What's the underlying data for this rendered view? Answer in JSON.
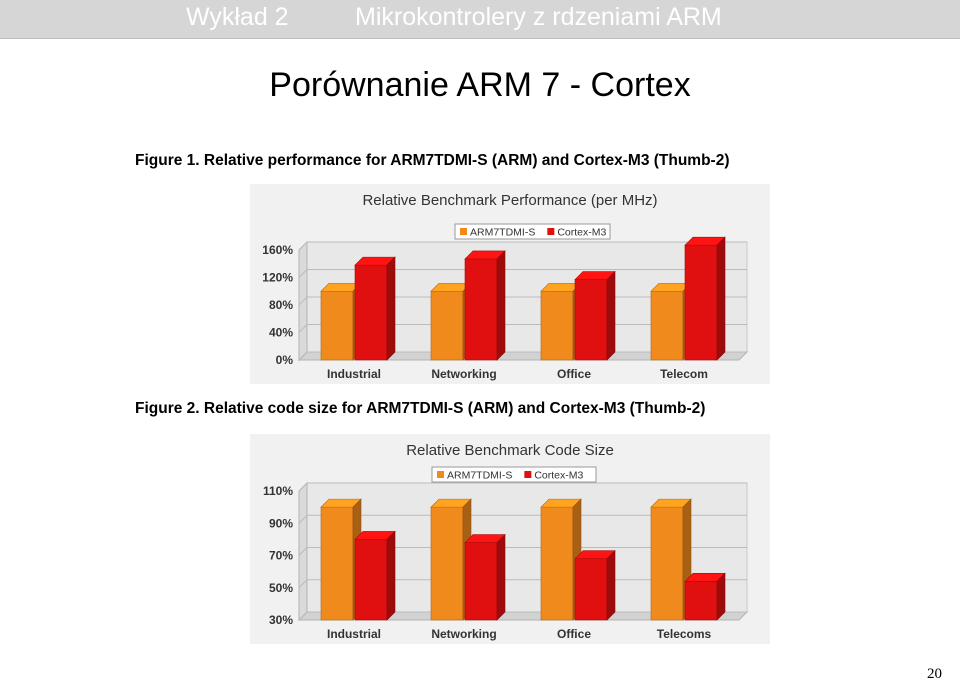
{
  "header": {
    "lecture": "Wykład 2",
    "course": "Mikrokontrolery z rdzeniami ARM"
  },
  "slide_title": "Porównanie ARM 7 - Cortex",
  "figures": [
    {
      "caption": "Figure 1. Relative performance for ARM7TDMI-S (ARM) and Cortex-M3 (Thumb-2)"
    },
    {
      "caption": "Figure 2. Relative code size for ARM7TDMI-S (ARM) and Cortex-M3 (Thumb-2)"
    }
  ],
  "page_number": "20",
  "colors": {
    "series1": "#f08a1c",
    "series2": "#e01010",
    "header_bg": "#d6d6d6"
  },
  "chart_data": [
    {
      "type": "bar",
      "title": "Relative Benchmark Performance (per MHz)",
      "categories": [
        "Industrial",
        "Networking",
        "Office",
        "Telecom"
      ],
      "series": [
        {
          "name": "ARM7TDMI-S",
          "values": [
            100,
            100,
            100,
            100
          ]
        },
        {
          "name": "Cortex-M3",
          "values": [
            138,
            147,
            117,
            167
          ]
        }
      ],
      "ylim": [
        0,
        160
      ],
      "yticks": [
        0,
        40,
        80,
        120,
        160
      ],
      "ytick_labels": [
        "0%",
        "40%",
        "80%",
        "120%",
        "160%"
      ],
      "legend": "top"
    },
    {
      "type": "bar",
      "title": "Relative Benchmark Code Size",
      "categories": [
        "Industrial",
        "Networking",
        "Office",
        "Telecoms"
      ],
      "series": [
        {
          "name": "ARM7TDMI-S",
          "values": [
            100,
            100,
            100,
            100
          ]
        },
        {
          "name": "Cortex-M3",
          "values": [
            80,
            78,
            68,
            54
          ]
        }
      ],
      "ylim": [
        30,
        110
      ],
      "yticks": [
        30,
        50,
        70,
        90,
        110
      ],
      "ytick_labels": [
        "30%",
        "50%",
        "70%",
        "90%",
        "110%"
      ],
      "legend": "top"
    }
  ]
}
